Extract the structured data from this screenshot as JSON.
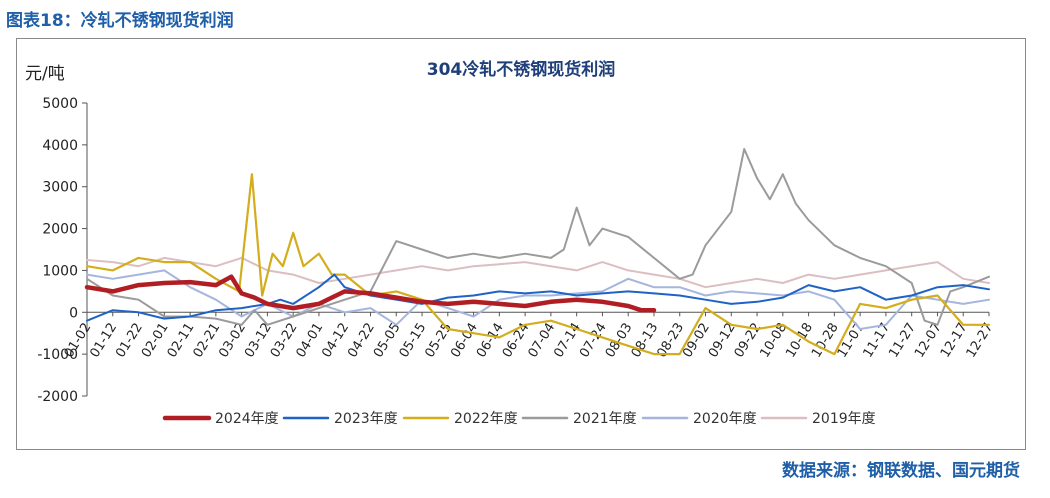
{
  "figure_label": "图表18：冷轧不锈钢现货利润",
  "source": "数据来源：钢联数据、国元期货",
  "chart_data": {
    "type": "line",
    "title": "304冷轧不锈钢现货利润",
    "ylabel": "元/吨",
    "xlabel": "",
    "ylim": [
      -2000,
      5000
    ],
    "yticks": [
      -2000,
      -1000,
      0,
      1000,
      2000,
      3000,
      4000,
      5000
    ],
    "x_ticks": [
      "01-02",
      "01-12",
      "01-22",
      "02-01",
      "02-11",
      "02-21",
      "03-02",
      "03-12",
      "03-22",
      "04-01",
      "04-12",
      "04-22",
      "05-05",
      "05-15",
      "05-25",
      "06-04",
      "06-14",
      "06-24",
      "07-04",
      "07-14",
      "07-24",
      "08-03",
      "08-13",
      "08-23",
      "09-02",
      "09-12",
      "09-22",
      "10-08",
      "10-18",
      "10-28",
      "11-07",
      "11-17",
      "11-27",
      "12-07",
      "12-17",
      "12-27"
    ],
    "grid": false,
    "legend_position": "bottom",
    "series": [
      {
        "name": "2024年度",
        "color": "#b01e23",
        "width": 4.5,
        "points": [
          [
            0,
            600
          ],
          [
            1,
            500
          ],
          [
            2,
            650
          ],
          [
            3,
            700
          ],
          [
            4,
            720
          ],
          [
            5,
            650
          ],
          [
            5.6,
            850
          ],
          [
            6,
            450
          ],
          [
            6.5,
            350
          ],
          [
            7,
            200
          ],
          [
            8,
            100
          ],
          [
            9,
            200
          ],
          [
            10,
            500
          ],
          [
            11,
            450
          ],
          [
            12,
            350
          ],
          [
            13,
            250
          ],
          [
            14,
            200
          ],
          [
            15,
            250
          ],
          [
            16,
            200
          ],
          [
            17,
            150
          ],
          [
            18,
            250
          ],
          [
            19,
            300
          ],
          [
            20,
            250
          ],
          [
            21,
            150
          ],
          [
            21.5,
            50
          ],
          [
            22,
            50
          ]
        ]
      },
      {
        "name": "2023年度",
        "color": "#1f63c6",
        "width": 2,
        "points": [
          [
            0,
            -200
          ],
          [
            1,
            50
          ],
          [
            2,
            0
          ],
          [
            3,
            -150
          ],
          [
            4,
            -100
          ],
          [
            5,
            50
          ],
          [
            6,
            100
          ],
          [
            7,
            200
          ],
          [
            7.5,
            300
          ],
          [
            8,
            200
          ],
          [
            9,
            600
          ],
          [
            9.6,
            900
          ],
          [
            10,
            600
          ],
          [
            11,
            400
          ],
          [
            12,
            300
          ],
          [
            13,
            200
          ],
          [
            14,
            350
          ],
          [
            15,
            400
          ],
          [
            16,
            500
          ],
          [
            17,
            450
          ],
          [
            18,
            500
          ],
          [
            19,
            400
          ],
          [
            20,
            450
          ],
          [
            21,
            500
          ],
          [
            22,
            450
          ],
          [
            23,
            400
          ],
          [
            24,
            300
          ],
          [
            25,
            200
          ],
          [
            26,
            250
          ],
          [
            27,
            350
          ],
          [
            28,
            650
          ],
          [
            29,
            500
          ],
          [
            30,
            600
          ],
          [
            31,
            300
          ],
          [
            32,
            400
          ],
          [
            33,
            600
          ],
          [
            34,
            650
          ],
          [
            35,
            550
          ]
        ]
      },
      {
        "name": "2022年度",
        "color": "#d4ad1c",
        "width": 2.2,
        "points": [
          [
            0,
            1100
          ],
          [
            1,
            1000
          ],
          [
            2,
            1300
          ],
          [
            3,
            1200
          ],
          [
            4,
            1200
          ],
          [
            5,
            800
          ],
          [
            5.9,
            500
          ],
          [
            6.4,
            3300
          ],
          [
            6.8,
            400
          ],
          [
            7.2,
            1400
          ],
          [
            7.6,
            1100
          ],
          [
            8,
            1900
          ],
          [
            8.4,
            1100
          ],
          [
            9,
            1400
          ],
          [
            9.5,
            900
          ],
          [
            10,
            900
          ],
          [
            11,
            400
          ],
          [
            12,
            500
          ],
          [
            13,
            300
          ],
          [
            14,
            -400
          ],
          [
            15,
            -500
          ],
          [
            16,
            -600
          ],
          [
            17,
            -300
          ],
          [
            18,
            -200
          ],
          [
            19,
            -400
          ],
          [
            20,
            -600
          ],
          [
            21,
            -800
          ],
          [
            22,
            -1000
          ],
          [
            23,
            -1000
          ],
          [
            24,
            100
          ],
          [
            25,
            -300
          ],
          [
            26,
            -400
          ],
          [
            27,
            -300
          ],
          [
            28,
            -700
          ],
          [
            29,
            -1000
          ],
          [
            30,
            200
          ],
          [
            31,
            100
          ],
          [
            32,
            300
          ],
          [
            33,
            400
          ],
          [
            34,
            -300
          ],
          [
            35,
            -300
          ]
        ]
      },
      {
        "name": "2021年度",
        "color": "#9b9b9b",
        "width": 2,
        "points": [
          [
            0,
            800
          ],
          [
            1,
            400
          ],
          [
            2,
            300
          ],
          [
            3,
            -100
          ],
          [
            4,
            -100
          ],
          [
            5,
            -150
          ],
          [
            6,
            -300
          ],
          [
            6.5,
            50
          ],
          [
            7,
            -300
          ],
          [
            8,
            -100
          ],
          [
            9,
            100
          ],
          [
            10,
            300
          ],
          [
            11,
            500
          ],
          [
            12,
            1700
          ],
          [
            13,
            1500
          ],
          [
            14,
            1300
          ],
          [
            15,
            1400
          ],
          [
            16,
            1300
          ],
          [
            17,
            1400
          ],
          [
            18,
            1300
          ],
          [
            18.5,
            1500
          ],
          [
            19,
            2500
          ],
          [
            19.5,
            1600
          ],
          [
            20,
            2000
          ],
          [
            21,
            1800
          ],
          [
            22,
            1300
          ],
          [
            23,
            800
          ],
          [
            23.5,
            900
          ],
          [
            24,
            1600
          ],
          [
            25,
            2400
          ],
          [
            25.5,
            3900
          ],
          [
            26,
            3200
          ],
          [
            26.5,
            2700
          ],
          [
            27,
            3300
          ],
          [
            27.5,
            2600
          ],
          [
            28,
            2200
          ],
          [
            29,
            1600
          ],
          [
            30,
            1300
          ],
          [
            31,
            1100
          ],
          [
            32,
            700
          ],
          [
            32.5,
            -200
          ],
          [
            33,
            -300
          ],
          [
            33.5,
            500
          ],
          [
            34,
            600
          ],
          [
            35,
            850
          ]
        ]
      },
      {
        "name": "2020年度",
        "color": "#a6b5de",
        "width": 2,
        "points": [
          [
            0,
            900
          ],
          [
            1,
            800
          ],
          [
            2,
            900
          ],
          [
            3,
            1000
          ],
          [
            4,
            600
          ],
          [
            5,
            300
          ],
          [
            6,
            -100
          ],
          [
            7,
            200
          ],
          [
            8,
            -100
          ],
          [
            9,
            200
          ],
          [
            10,
            0
          ],
          [
            11,
            100
          ],
          [
            12,
            -300
          ],
          [
            13,
            300
          ],
          [
            14,
            100
          ],
          [
            15,
            -100
          ],
          [
            16,
            300
          ],
          [
            17,
            400
          ],
          [
            18,
            400
          ],
          [
            19,
            450
          ],
          [
            20,
            500
          ],
          [
            21,
            800
          ],
          [
            22,
            600
          ],
          [
            23,
            600
          ],
          [
            24,
            400
          ],
          [
            25,
            500
          ],
          [
            26,
            450
          ],
          [
            27,
            400
          ],
          [
            28,
            500
          ],
          [
            29,
            300
          ],
          [
            30,
            -400
          ],
          [
            31,
            -300
          ],
          [
            32,
            400
          ],
          [
            33,
            300
          ],
          [
            34,
            200
          ],
          [
            35,
            300
          ]
        ]
      },
      {
        "name": "2019年度",
        "color": "#dcbec2",
        "width": 2,
        "points": [
          [
            0,
            1250
          ],
          [
            1,
            1200
          ],
          [
            2,
            1100
          ],
          [
            3,
            1300
          ],
          [
            4,
            1200
          ],
          [
            5,
            1100
          ],
          [
            6,
            1300
          ],
          [
            7,
            1000
          ],
          [
            8,
            900
          ],
          [
            9,
            700
          ],
          [
            10,
            800
          ],
          [
            11,
            900
          ],
          [
            12,
            1000
          ],
          [
            13,
            1100
          ],
          [
            14,
            1000
          ],
          [
            15,
            1100
          ],
          [
            16,
            1150
          ],
          [
            17,
            1200
          ],
          [
            18,
            1100
          ],
          [
            19,
            1000
          ],
          [
            20,
            1200
          ],
          [
            21,
            1000
          ],
          [
            22,
            900
          ],
          [
            23,
            800
          ],
          [
            24,
            600
          ],
          [
            25,
            700
          ],
          [
            26,
            800
          ],
          [
            27,
            700
          ],
          [
            28,
            900
          ],
          [
            29,
            800
          ],
          [
            30,
            900
          ],
          [
            31,
            1000
          ],
          [
            32,
            1100
          ],
          [
            33,
            1200
          ],
          [
            34,
            800
          ],
          [
            35,
            700
          ]
        ]
      }
    ]
  }
}
